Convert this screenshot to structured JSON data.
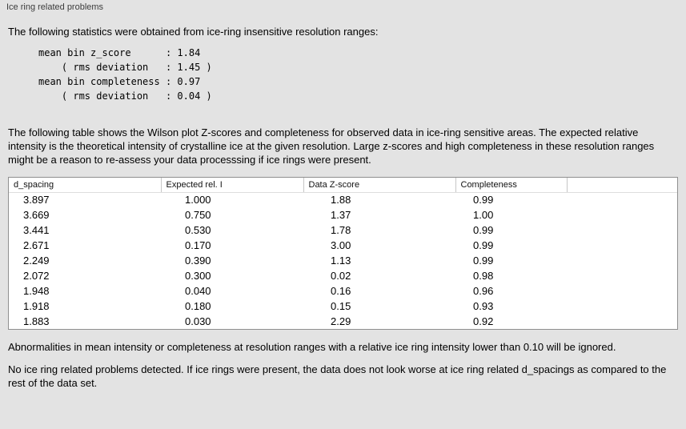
{
  "panel": {
    "title": "Ice ring related problems"
  },
  "intro": "The following statistics were obtained from ice-ring insensitive resolution ranges:",
  "stats_lines": [
    "mean bin z_score      : 1.84",
    "    ( rms deviation   : 1.45 )",
    "mean bin completeness : 0.97",
    "    ( rms deviation   : 0.04 )"
  ],
  "description": "The following table shows the Wilson plot Z-scores and completeness for observed data in ice-ring sensitive areas. The expected relative intensity is the theoretical intensity of crystalline ice at the given resolution. Large z-scores and high completeness in these resolution ranges might be a reason to re-assess your data processsing if ice rings were present.",
  "table": {
    "columns": [
      "d_spacing",
      "Expected rel. I",
      "Data Z-score",
      "Completeness"
    ],
    "rows": [
      [
        "3.897",
        "1.000",
        "1.88",
        "0.99"
      ],
      [
        "3.669",
        "0.750",
        "1.37",
        "1.00"
      ],
      [
        "3.441",
        "0.530",
        "1.78",
        "0.99"
      ],
      [
        "2.671",
        "0.170",
        "3.00",
        "0.99"
      ],
      [
        "2.249",
        "0.390",
        "1.13",
        "0.99"
      ],
      [
        "2.072",
        "0.300",
        "0.02",
        "0.98"
      ],
      [
        "1.948",
        "0.040",
        "0.16",
        "0.96"
      ],
      [
        "1.918",
        "0.180",
        "0.15",
        "0.93"
      ],
      [
        "1.883",
        "0.030",
        "2.29",
        "0.92"
      ]
    ]
  },
  "notes": [
    "Abnormalities in mean intensity or completeness at resolution ranges with a relative ice ring intensity lower than 0.10 will be ignored.",
    "No ice ring related problems detected. If ice rings were present, the data does not look worse at ice ring related d_spacings as compared to the rest of the data set."
  ]
}
